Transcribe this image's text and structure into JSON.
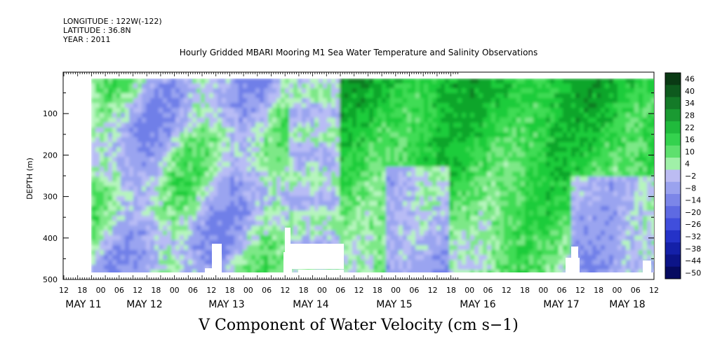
{
  "header": {
    "longitude": "LONGITUDE : 122W(-122)",
    "latitude": "LATITUDE : 36.8N",
    "year": "YEAR : 2011"
  },
  "chart_data": {
    "type": "heatmap",
    "title": "Hourly Gridded MBARI Mooring M1 Sea Water Temperature and Salinity Observations",
    "xlabel": "V Component of Water Velocity (cm s−1)",
    "ylabel": "DEPTH (m)",
    "ylim": [
      500,
      0
    ],
    "y_ticks": [
      100,
      200,
      300,
      400,
      500
    ],
    "hour_ticks": [
      "12",
      "18",
      "00",
      "06",
      "12",
      "18",
      "00",
      "06",
      "12",
      "18",
      "00",
      "06",
      "12",
      "18",
      "00",
      "06",
      "12",
      "18",
      "00",
      "06",
      "12",
      "18",
      "00",
      "06",
      "12",
      "18",
      "00",
      "06",
      "12",
      "18",
      "00",
      "06",
      "12"
    ],
    "day_labels": [
      "MAY 11",
      "MAY 12",
      "MAY 13",
      "MAY 14",
      "MAY 15",
      "MAY 16",
      "MAY 17",
      "MAY 18"
    ],
    "colorbar_levels": [
      "46",
      "40",
      "34",
      "28",
      "22",
      "16",
      "10",
      "4",
      "−2",
      "−8",
      "−14",
      "−20",
      "−26",
      "−32",
      "−38",
      "−44",
      "−50"
    ],
    "colors": {
      "positive_strong": "#0a4a1a",
      "positive_mid": "#1fd43a",
      "positive_weak": "#a8f5b0",
      "negative_weak": "#b0b0f5",
      "negative_mid": "#6f7fe8",
      "negative_strong": "#0a0a7a"
    }
  }
}
